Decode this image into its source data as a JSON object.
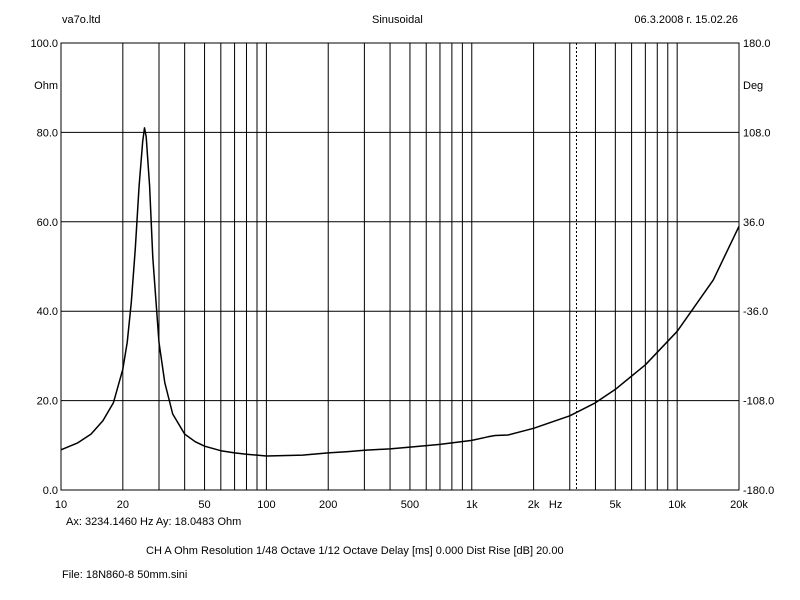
{
  "header": {
    "left": "va7o.ltd",
    "center": "Sinusoidal",
    "right": "06.3.2008 г. 15.02.26"
  },
  "chart_data": {
    "type": "line",
    "title": "Sinusoidal",
    "xlabel": "Hz",
    "ylabel": "Ohm",
    "y2label": "Deg",
    "xscale": "log",
    "xlim": [
      10,
      20000
    ],
    "ylim": [
      0,
      100
    ],
    "y2lim": [
      -180,
      180
    ],
    "grid": true,
    "x_ticks": [
      10,
      20,
      50,
      100,
      200,
      500,
      1000,
      2000,
      5000,
      10000,
      20000
    ],
    "x_tick_labels": [
      "10",
      "20",
      "50",
      "100",
      "200",
      "500",
      "1k",
      "2k",
      "5k",
      "10k",
      "20k"
    ],
    "y_ticks": [
      0,
      20,
      40,
      60,
      80,
      100
    ],
    "y_tick_labels": [
      "0.0",
      "20.0",
      "40.0",
      "60.0",
      "80.0",
      "100.0"
    ],
    "y2_ticks": [
      -180,
      -108,
      -36,
      36,
      108,
      180
    ],
    "y2_tick_labels": [
      "-180.0",
      "-108.0",
      "-36.0",
      "36.0",
      "108.0",
      "180.0"
    ],
    "cursor_x": 3234.146,
    "series": [
      {
        "name": "",
        "color": "#000000",
        "x": [
          10,
          12,
          14,
          16,
          18,
          20,
          21,
          22,
          23,
          24,
          25,
          25.5,
          26,
          27,
          28,
          30,
          32,
          35,
          40,
          45,
          50,
          60,
          70,
          80,
          100,
          150,
          200,
          250,
          300,
          400,
          500,
          700,
          1000,
          1200,
          1300,
          1500,
          2000,
          3000,
          4000,
          5000,
          7000,
          10000,
          15000,
          20000
        ],
        "y": [
          9.0,
          10.5,
          12.5,
          15.5,
          19.5,
          27.0,
          33.0,
          42.0,
          54.0,
          68.0,
          78.0,
          81.0,
          79.0,
          68.0,
          52.0,
          33.0,
          24.0,
          17.0,
          12.5,
          10.8,
          9.8,
          8.8,
          8.3,
          8.0,
          7.6,
          7.8,
          8.3,
          8.6,
          8.9,
          9.2,
          9.6,
          10.2,
          11.1,
          11.9,
          12.2,
          12.3,
          13.8,
          16.6,
          19.5,
          22.5,
          28.0,
          35.5,
          47.0,
          59.0
        ]
      }
    ]
  },
  "cursor_readout": "Ax: 3234.1460 Hz   Ay: 18.0483 Ohm",
  "footer": {
    "settings": "CH A   Ohm   Resolution 1/48 Octave   1/12 Octave   Delay [ms] 0.000   Dist Rise [dB] 20.00",
    "file": "File: 18N860-8 50mm.sini"
  }
}
